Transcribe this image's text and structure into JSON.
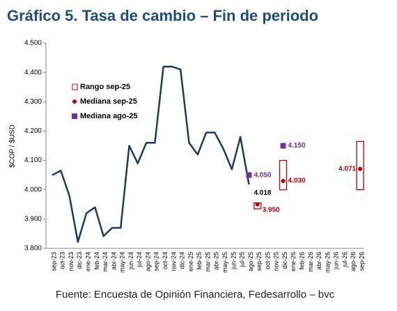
{
  "chart_data": {
    "type": "line",
    "title": "Gráfico 5. Tasa de cambio – Fin de periodo",
    "y_label": "$COP / $USD",
    "source": "Fuente: Encuesta de Opinión Financiera, Fedesarrollo – bvc",
    "categories": [
      "sep-23",
      "oct-23",
      "nov-23",
      "dic-23",
      "ene-24",
      "feb-24",
      "mar-24",
      "abr-24",
      "may-24",
      "jun-24",
      "jul-24",
      "ago-24",
      "sep-24",
      "oct-24",
      "nov-24",
      "dic-24",
      "ene-25",
      "feb-25",
      "mar-25",
      "abr-25",
      "may-25",
      "jun-25",
      "jul-25",
      "ago-25",
      "sep-25",
      "oct-25",
      "nov-25",
      "dic-25",
      "ene-26",
      "feb-26",
      "mar-26",
      "abr-26",
      "may-26",
      "jun-26",
      "jul-26",
      "ago-26",
      "sep-26"
    ],
    "ylim": [
      3800,
      4500
    ],
    "yticks": [
      {
        "value": 3800,
        "label": "3.800"
      },
      {
        "value": 3900,
        "label": "3.900"
      },
      {
        "value": 4000,
        "label": "4.000"
      },
      {
        "value": 4100,
        "label": "4.100"
      },
      {
        "value": 4200,
        "label": "4.200"
      },
      {
        "value": 4300,
        "label": "4.300"
      },
      {
        "value": 4400,
        "label": "4.400"
      },
      {
        "value": 4500,
        "label": "4.500"
      }
    ],
    "series": [
      {
        "kind": "line",
        "color": "#1f3864",
        "values": [
          4050,
          4065,
          3980,
          3822,
          3920,
          3940,
          3842,
          3870,
          3870,
          4150,
          4090,
          4160,
          4160,
          4420,
          4420,
          4410,
          4160,
          4120,
          4195,
          4195,
          4140,
          4070,
          4180,
          4018,
          null,
          null,
          null,
          null,
          null,
          null,
          null,
          null,
          null,
          null,
          null,
          null,
          null
        ],
        "value_labels": [
          null,
          null,
          null,
          null,
          null,
          null,
          null,
          null,
          null,
          null,
          null,
          null,
          null,
          null,
          null,
          null,
          null,
          null,
          null,
          null,
          null,
          null,
          null,
          "4.018",
          null,
          null,
          null,
          null,
          null,
          null,
          null,
          null,
          null,
          null,
          null,
          null,
          null
        ]
      },
      {
        "kind": "range",
        "name": "Rango sep-25",
        "color": "#c00000",
        "low": [
          null,
          null,
          null,
          null,
          null,
          null,
          null,
          null,
          null,
          null,
          null,
          null,
          null,
          null,
          null,
          null,
          null,
          null,
          null,
          null,
          null,
          null,
          null,
          null,
          3935,
          null,
          null,
          4000,
          null,
          null,
          null,
          null,
          null,
          null,
          null,
          null,
          4000
        ],
        "high": [
          null,
          null,
          null,
          null,
          null,
          null,
          null,
          null,
          null,
          null,
          null,
          null,
          null,
          null,
          null,
          null,
          null,
          null,
          null,
          null,
          null,
          null,
          null,
          null,
          3955,
          null,
          null,
          4100,
          null,
          null,
          null,
          null,
          null,
          null,
          null,
          null,
          4165
        ]
      },
      {
        "kind": "dot",
        "name": "Mediana sep-25",
        "color": "#c00000",
        "values": [
          null,
          null,
          null,
          null,
          null,
          null,
          null,
          null,
          null,
          null,
          null,
          null,
          null,
          null,
          null,
          null,
          null,
          null,
          null,
          null,
          null,
          null,
          null,
          null,
          3950,
          null,
          null,
          4030,
          null,
          null,
          null,
          null,
          null,
          null,
          null,
          null,
          4071
        ],
        "value_labels": [
          null,
          null,
          null,
          null,
          null,
          null,
          null,
          null,
          null,
          null,
          null,
          null,
          null,
          null,
          null,
          null,
          null,
          null,
          null,
          null,
          null,
          null,
          null,
          null,
          "3.950",
          null,
          null,
          "4.030",
          null,
          null,
          null,
          null,
          null,
          null,
          null,
          null,
          "4.071"
        ]
      },
      {
        "kind": "square",
        "name": "Mediana ago-25",
        "color": "#7030a0",
        "values": [
          null,
          null,
          null,
          null,
          null,
          null,
          null,
          null,
          null,
          null,
          null,
          null,
          null,
          null,
          null,
          null,
          null,
          null,
          null,
          null,
          null,
          null,
          null,
          4050,
          null,
          null,
          null,
          4150,
          null,
          null,
          null,
          null,
          null,
          null,
          null,
          null,
          null
        ],
        "value_labels": [
          null,
          null,
          null,
          null,
          null,
          null,
          null,
          null,
          null,
          null,
          null,
          null,
          null,
          null,
          null,
          null,
          null,
          null,
          null,
          null,
          null,
          null,
          null,
          "4.050",
          null,
          null,
          null,
          "4.150",
          null,
          null,
          null,
          null,
          null,
          null,
          null,
          null,
          null
        ]
      }
    ]
  }
}
